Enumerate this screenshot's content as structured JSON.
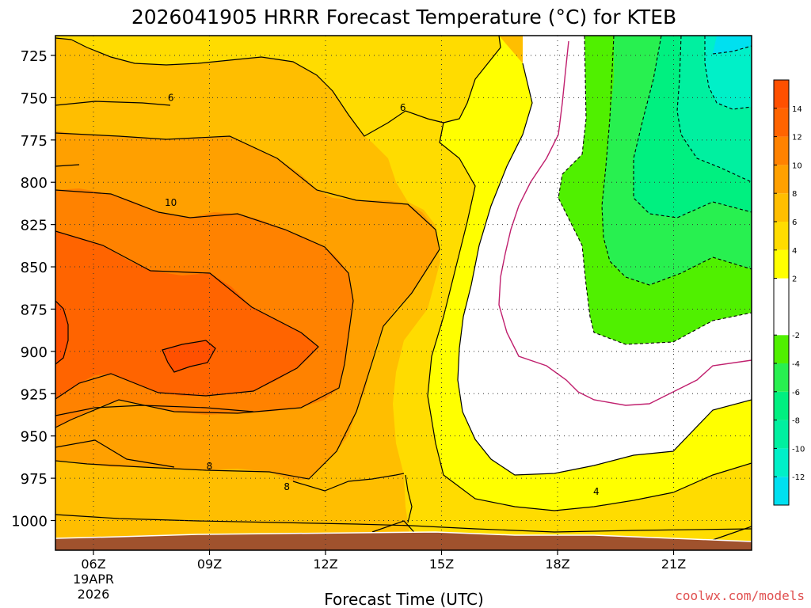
{
  "chart_data": {
    "type": "heatmap",
    "title": "2026041905 HRRR Forecast Temperature (°C) for KTEB",
    "xlabel": "Forecast Time (UTC)",
    "ylabel": "",
    "x_ticks": [
      "06Z",
      "09Z",
      "12Z",
      "15Z",
      "18Z",
      "21Z"
    ],
    "x_date_label": [
      "19APR",
      "2026"
    ],
    "y_ticks": [
      "725",
      "750",
      "775",
      "800",
      "825",
      "850",
      "875",
      "900",
      "925",
      "950",
      "975",
      "1000"
    ],
    "ylim": [
      1013,
      710
    ],
    "y_reversed": true,
    "colorbar": {
      "tick_labels": [
        "14",
        "12",
        "10",
        "8",
        "6",
        "4",
        "2",
        "-2",
        "-4",
        "-6",
        "-8",
        "-10",
        "-12"
      ],
      "bins": [
        {
          "lo": -14,
          "hi": -12,
          "color": "#00e0f0"
        },
        {
          "lo": -12,
          "hi": -10,
          "color": "#00f0c8"
        },
        {
          "lo": -10,
          "hi": -8,
          "color": "#00f0a0"
        },
        {
          "lo": -8,
          "hi": -6,
          "color": "#00f080"
        },
        {
          "lo": -6,
          "hi": -4,
          "color": "#28f050"
        },
        {
          "lo": -4,
          "hi": -2,
          "color": "#50f000"
        },
        {
          "lo": -2,
          "hi": 2,
          "color": "#ffffff"
        },
        {
          "lo": 2,
          "hi": 4,
          "color": "#ffff00"
        },
        {
          "lo": 4,
          "hi": 6,
          "color": "#ffdc00"
        },
        {
          "lo": 6,
          "hi": 8,
          "color": "#ffbe00"
        },
        {
          "lo": 8,
          "hi": 10,
          "color": "#ffa000"
        },
        {
          "lo": 10,
          "hi": 12,
          "color": "#ff8200"
        },
        {
          "lo": 12,
          "hi": 14,
          "color": "#ff6400"
        },
        {
          "lo": 14,
          "hi": 16,
          "color": "#ff5000"
        }
      ]
    },
    "contour_labels": [
      {
        "text": "6",
        "x": "08Z",
        "y": 750
      },
      {
        "text": "6",
        "x": "14Z",
        "y": 756
      },
      {
        "text": "10",
        "x": "08Z",
        "y": 812
      },
      {
        "text": "8",
        "x": "09Z",
        "y": 968
      },
      {
        "text": "8",
        "x": "11Z",
        "y": 980
      },
      {
        "text": "4",
        "x": "19Z",
        "y": 983
      }
    ],
    "ground_color": "#a0522d"
  },
  "credit": "coolwx.com/models"
}
